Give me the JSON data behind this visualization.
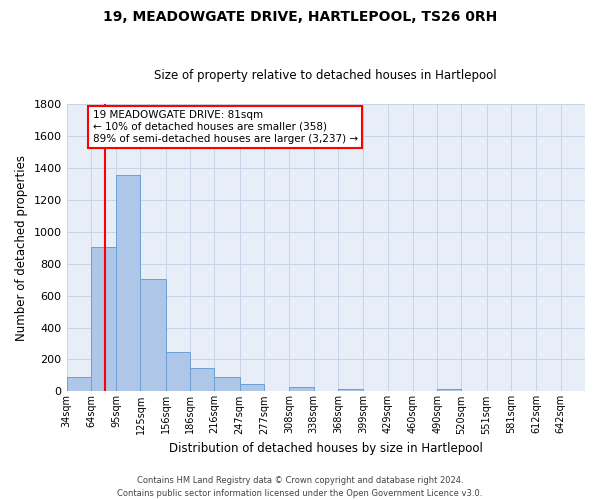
{
  "title": "19, MEADOWGATE DRIVE, HARTLEPOOL, TS26 0RH",
  "subtitle": "Size of property relative to detached houses in Hartlepool",
  "xlabel": "Distribution of detached houses by size in Hartlepool",
  "ylabel": "Number of detached properties",
  "bar_labels": [
    "34sqm",
    "64sqm",
    "95sqm",
    "125sqm",
    "156sqm",
    "186sqm",
    "216sqm",
    "247sqm",
    "277sqm",
    "308sqm",
    "338sqm",
    "368sqm",
    "399sqm",
    "429sqm",
    "460sqm",
    "490sqm",
    "520sqm",
    "551sqm",
    "581sqm",
    "612sqm",
    "642sqm"
  ],
  "bar_values": [
    90,
    905,
    1355,
    705,
    248,
    145,
    88,
    45,
    0,
    25,
    0,
    12,
    0,
    0,
    0,
    12,
    0,
    0,
    0,
    0,
    0
  ],
  "bar_color": "#aec6e8",
  "bar_edge_color": "#6b9fd4",
  "ylim": [
    0,
    1800
  ],
  "yticks": [
    0,
    200,
    400,
    600,
    800,
    1000,
    1200,
    1400,
    1600,
    1800
  ],
  "property_line_x": 81,
  "property_line_label": "19 MEADOWGATE DRIVE: 81sqm",
  "annotation_line1": "← 10% of detached houses are smaller (358)",
  "annotation_line2": "89% of semi-detached houses are larger (3,237) →",
  "footer1": "Contains HM Land Registry data © Crown copyright and database right 2024.",
  "footer2": "Contains public sector information licensed under the Open Government Licence v3.0.",
  "bin_edges": [
    34,
    64,
    95,
    125,
    156,
    186,
    216,
    247,
    277,
    308,
    338,
    368,
    399,
    429,
    460,
    490,
    520,
    551,
    581,
    612,
    642,
    672
  ],
  "grid_color": "#c8d4e8",
  "background_color": "#e8eef8"
}
